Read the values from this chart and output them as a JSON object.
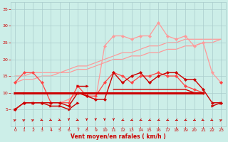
{
  "x": [
    0,
    1,
    2,
    3,
    4,
    5,
    6,
    7,
    8,
    9,
    10,
    11,
    12,
    13,
    14,
    15,
    16,
    17,
    18,
    19,
    20,
    21,
    22,
    23
  ],
  "background_color": "#cceee8",
  "grid_color": "#aacccc",
  "dark_red": "#cc0000",
  "med_red": "#ff4444",
  "light_red": "#ff9999",
  "xlabel": "Vent moyen/en rafales ( km/h )",
  "xlim": [
    -0.5,
    23.5
  ],
  "ylim": [
    0,
    37
  ],
  "yticks": [
    5,
    10,
    15,
    20,
    25,
    30,
    35
  ],
  "xticks": [
    0,
    1,
    2,
    3,
    4,
    5,
    6,
    7,
    8,
    9,
    10,
    11,
    12,
    13,
    14,
    15,
    16,
    17,
    18,
    19,
    20,
    21,
    22,
    23
  ],
  "line_diag1": [
    13,
    14,
    14,
    15,
    15,
    16,
    16,
    17,
    17,
    18,
    19,
    20,
    20,
    21,
    21,
    22,
    22,
    23,
    23,
    24,
    24,
    25,
    25,
    26
  ],
  "line_diag2": [
    15,
    15,
    16,
    16,
    16,
    16,
    17,
    18,
    18,
    19,
    20,
    21,
    22,
    22,
    23,
    24,
    24,
    25,
    25,
    26,
    26,
    26,
    26,
    26
  ],
  "line_peak": [
    5,
    7,
    7,
    7,
    7,
    7,
    8,
    10,
    9,
    8,
    24,
    27,
    27,
    26,
    27,
    27,
    31,
    27,
    26,
    27,
    24,
    25,
    16,
    13
  ],
  "line_med1": [
    13,
    16,
    16,
    13,
    7,
    7,
    7,
    12,
    9,
    9,
    13,
    16,
    15,
    13,
    15,
    15,
    16,
    15,
    15,
    12,
    11,
    10,
    null,
    13
  ],
  "line_dark1": [
    5,
    7,
    7,
    7,
    6,
    6,
    5,
    7,
    null,
    null,
    null,
    null,
    null,
    null,
    null,
    null,
    null,
    null,
    null,
    null,
    null,
    null,
    6,
    7
  ],
  "line_dark2_y": 10,
  "line_dark2_x1": 0,
  "line_dark2_x2": 21,
  "line_dark3": [
    10,
    10,
    null,
    null,
    null,
    null,
    null,
    12,
    12,
    null,
    null,
    null,
    null,
    null,
    null,
    null,
    null,
    null,
    null,
    null,
    null,
    null,
    null,
    7
  ],
  "line_dark4": [
    5,
    7,
    7,
    7,
    7,
    7,
    6,
    10,
    9,
    8,
    8,
    16,
    13,
    15,
    16,
    13,
    15,
    16,
    16,
    14,
    14,
    11,
    7,
    7
  ],
  "line_dark5": [
    null,
    null,
    null,
    null,
    null,
    null,
    null,
    null,
    null,
    null,
    null,
    11,
    11,
    11,
    11,
    11,
    11,
    11,
    11,
    11,
    10,
    10,
    null,
    null
  ],
  "arrow_angles": [
    45,
    45,
    45,
    315,
    315,
    315,
    270,
    315,
    270,
    270,
    270,
    270,
    225,
    225,
    225,
    225,
    225,
    225,
    225,
    225,
    225,
    315,
    315,
    45
  ]
}
